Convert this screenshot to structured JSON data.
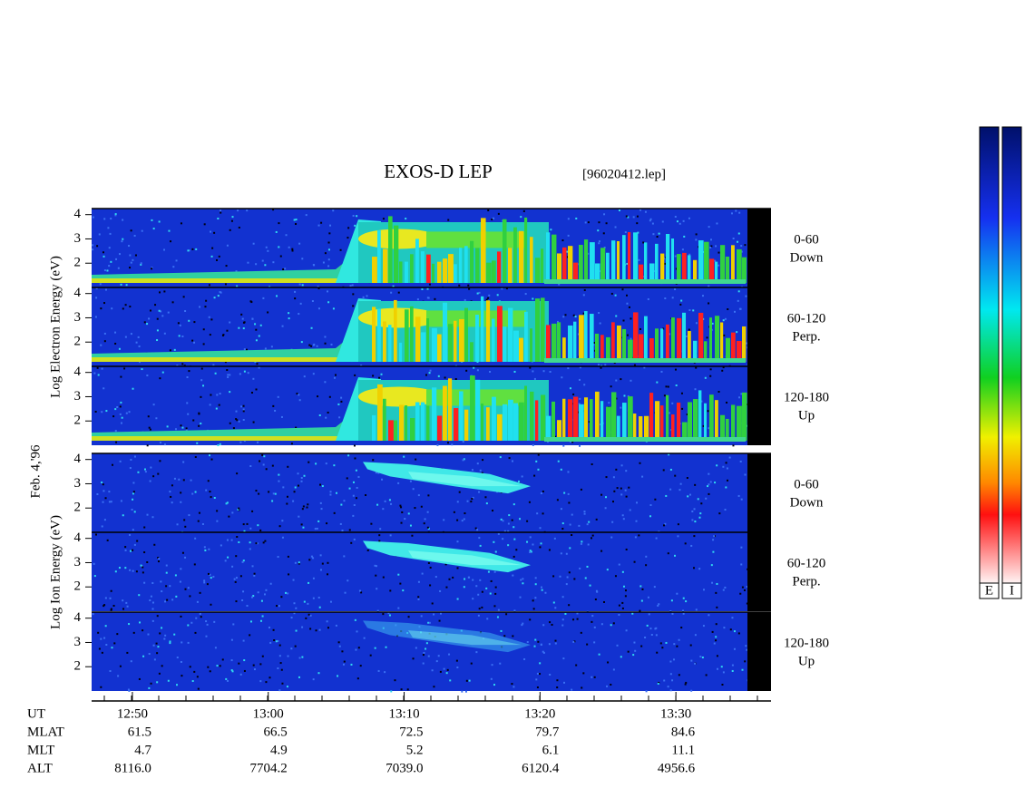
{
  "title": "EXOS-D LEP",
  "file": "[96020412.lep]",
  "date": "Feb. 4,'96",
  "chart_data": [
    {
      "type": "spectrogram",
      "species": "electron",
      "ylabel": "Log Electron Energy (eV)",
      "ylim": [
        1,
        4.25
      ],
      "yticks": [
        2,
        3,
        4
      ],
      "channels": [
        {
          "range": "0-60",
          "direction": "Down"
        },
        {
          "range": "60-120",
          "direction": "Perp."
        },
        {
          "range": "120-180",
          "direction": "Up"
        }
      ]
    },
    {
      "type": "spectrogram",
      "species": "ion",
      "ylabel": "Log Ion Energy (eV)",
      "ylim": [
        1,
        4.25
      ],
      "yticks": [
        2,
        3,
        4
      ],
      "channels": [
        {
          "range": "0-60",
          "direction": "Down"
        },
        {
          "range": "60-120",
          "direction": "Perp."
        },
        {
          "range": "120-180",
          "direction": "Up"
        }
      ]
    }
  ],
  "time_axis": {
    "xlim": [
      767,
      817
    ],
    "xticks": [
      {
        "value": 770,
        "label": "12:50"
      },
      {
        "value": 780,
        "label": "13:00"
      },
      {
        "value": 790,
        "label": "13:10"
      },
      {
        "value": 800,
        "label": "13:20"
      },
      {
        "value": 810,
        "label": "13:30"
      }
    ]
  },
  "ephemeris": {
    "ut_label": "UT",
    "rows": [
      {
        "label": "MLAT",
        "values": [
          "61.5",
          "66.5",
          "72.5",
          "79.7",
          "84.6"
        ]
      },
      {
        "label": "MLT",
        "values": [
          "4.7",
          "4.9",
          "5.2",
          "6.1",
          "11.1"
        ]
      },
      {
        "label": "ALT",
        "values": [
          "8116.0",
          "7704.2",
          "7039.0",
          "6120.4",
          "4956.6"
        ]
      }
    ]
  },
  "colorbars": [
    "E",
    "I"
  ]
}
